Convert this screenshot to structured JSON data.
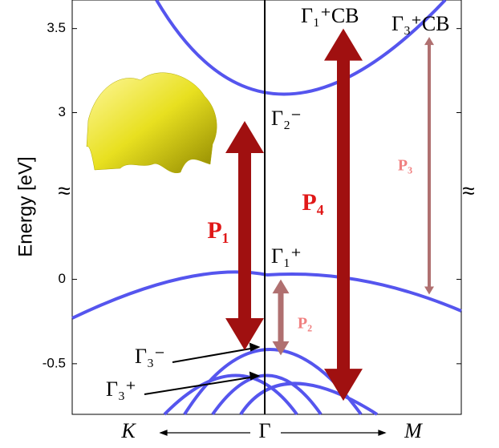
{
  "chart_data": {
    "type": "band-structure",
    "ylabel": "Energy [eV]",
    "ylim": [
      -0.8,
      3.67
    ],
    "ybreak": [
      0.53,
      2.54
    ],
    "yticks": [
      -0.5,
      0,
      3,
      3.5
    ],
    "break_mark": "≈",
    "x_labels": [
      "K",
      "Γ",
      "M"
    ],
    "band_color": "#5555ee",
    "arrows": [
      {
        "label": "P₁",
        "from": 2.95,
        "to": -0.42,
        "color": "#a01010",
        "label_color": "#e01818"
      },
      {
        "label": "P₄",
        "from": 3.5,
        "to": -0.72,
        "color": "#a01010",
        "label_color": "#e01818"
      },
      {
        "label": "P₂",
        "from": 0,
        "to": -0.45,
        "color": "#b07070",
        "label_color": "#f08080"
      },
      {
        "label": "P₃",
        "from": 3.45,
        "to": -0.09,
        "color": "#b07070",
        "label_color": "#f08080"
      }
    ],
    "annotations": [
      "Γ₂⁻",
      "Γ₁⁺",
      "Γ₃⁻",
      "Γ₃⁺",
      "Γ₁⁺CB",
      "Γ₃⁺CB"
    ]
  }
}
